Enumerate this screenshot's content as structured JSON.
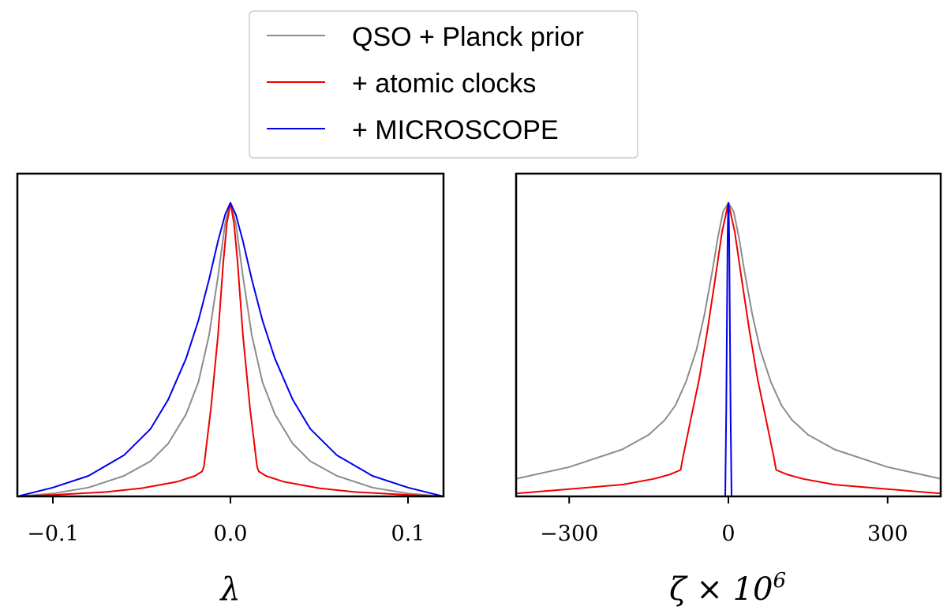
{
  "legend": {
    "entries": [
      {
        "label": "QSO + Planck prior",
        "color": "#8c8c8c"
      },
      {
        "label": "+ atomic clocks",
        "color": "#ee0000"
      },
      {
        "label": "+ MICROSCOPE",
        "color": "#0000ee"
      }
    ]
  },
  "chart_data": [
    {
      "type": "line",
      "title": "",
      "xlabel": "λ",
      "ylabel": "",
      "xlim": [
        -0.12,
        0.12
      ],
      "ylim": [
        0,
        1.0
      ],
      "xticks": [
        -0.1,
        0.0,
        0.1
      ],
      "xtick_labels": [
        "−0.1",
        "0.0",
        "0.1"
      ],
      "series": [
        {
          "name": "QSO + Planck prior",
          "color": "#8c8c8c",
          "x": [
            -0.12,
            -0.1,
            -0.08,
            -0.06,
            -0.045,
            -0.035,
            -0.025,
            -0.018,
            -0.012,
            -0.007,
            -0.003,
            0.0,
            0.003,
            0.007,
            0.012,
            0.018,
            0.025,
            0.035,
            0.045,
            0.06,
            0.08,
            0.1,
            0.12
          ],
          "y": [
            0.0,
            0.01,
            0.03,
            0.07,
            0.12,
            0.18,
            0.28,
            0.39,
            0.55,
            0.75,
            0.93,
            1.0,
            0.93,
            0.75,
            0.55,
            0.39,
            0.28,
            0.18,
            0.12,
            0.07,
            0.03,
            0.01,
            0.0
          ]
        },
        {
          "name": "+ atomic clocks",
          "color": "#ee0000",
          "x": [
            -0.12,
            -0.1,
            -0.07,
            -0.05,
            -0.03,
            -0.02,
            -0.016,
            -0.015,
            -0.011,
            -0.007,
            -0.004,
            -0.002,
            0.0,
            0.002,
            0.004,
            0.007,
            0.011,
            0.015,
            0.016,
            0.02,
            0.03,
            0.05,
            0.07,
            0.1,
            0.12
          ],
          "y": [
            0.0,
            0.005,
            0.015,
            0.028,
            0.05,
            0.07,
            0.085,
            0.1,
            0.3,
            0.55,
            0.8,
            0.93,
            1.0,
            0.93,
            0.8,
            0.55,
            0.3,
            0.1,
            0.085,
            0.07,
            0.05,
            0.028,
            0.015,
            0.005,
            0.0
          ]
        },
        {
          "name": "+ MICROSCOPE",
          "color": "#0000ee",
          "x": [
            -0.12,
            -0.1,
            -0.08,
            -0.06,
            -0.045,
            -0.035,
            -0.025,
            -0.018,
            -0.012,
            -0.007,
            -0.003,
            0.0,
            0.003,
            0.007,
            0.012,
            0.018,
            0.025,
            0.035,
            0.045,
            0.06,
            0.08,
            0.1,
            0.12
          ],
          "y": [
            0.0,
            0.03,
            0.07,
            0.14,
            0.23,
            0.33,
            0.47,
            0.6,
            0.74,
            0.87,
            0.96,
            1.0,
            0.96,
            0.87,
            0.74,
            0.6,
            0.47,
            0.33,
            0.23,
            0.14,
            0.07,
            0.03,
            0.0
          ]
        }
      ]
    },
    {
      "type": "line",
      "title": "",
      "xlabel": "ζ × 10",
      "xlabel_exponent": "6",
      "ylabel": "",
      "xlim": [
        -400,
        400
      ],
      "ylim": [
        0,
        1.0
      ],
      "xticks": [
        -300,
        0,
        300
      ],
      "xtick_labels": [
        "−300",
        "0",
        "300"
      ],
      "series": [
        {
          "name": "QSO + Planck prior",
          "color": "#8c8c8c",
          "x": [
            -400,
            -300,
            -200,
            -150,
            -120,
            -100,
            -80,
            -60,
            -45,
            -30,
            -20,
            -10,
            0,
            10,
            20,
            30,
            45,
            60,
            80,
            100,
            120,
            150,
            200,
            300,
            400
          ],
          "y": [
            0.06,
            0.1,
            0.16,
            0.21,
            0.26,
            0.31,
            0.39,
            0.5,
            0.62,
            0.77,
            0.88,
            0.97,
            1.0,
            0.97,
            0.88,
            0.77,
            0.62,
            0.5,
            0.39,
            0.31,
            0.26,
            0.21,
            0.16,
            0.1,
            0.06
          ]
        },
        {
          "name": "+ atomic clocks",
          "color": "#ee0000",
          "x": [
            -400,
            -300,
            -200,
            -140,
            -110,
            -90,
            -86,
            -70,
            -55,
            -40,
            -25,
            -12,
            0,
            12,
            25,
            40,
            55,
            70,
            86,
            90,
            110,
            140,
            200,
            300,
            400
          ],
          "y": [
            0.01,
            0.025,
            0.04,
            0.06,
            0.075,
            0.09,
            0.13,
            0.27,
            0.4,
            0.56,
            0.74,
            0.9,
            1.0,
            0.9,
            0.74,
            0.56,
            0.4,
            0.27,
            0.13,
            0.09,
            0.075,
            0.06,
            0.04,
            0.025,
            0.01
          ]
        },
        {
          "name": "+ MICROSCOPE",
          "color": "#0000ee",
          "x": [
            -6,
            -4,
            -2.5,
            -1.5,
            -0.5,
            0,
            0.5,
            1.5,
            2.5,
            4,
            6
          ],
          "y": [
            0.0,
            0.3,
            0.65,
            0.88,
            0.99,
            1.0,
            0.99,
            0.88,
            0.65,
            0.3,
            0.0
          ]
        }
      ]
    }
  ]
}
